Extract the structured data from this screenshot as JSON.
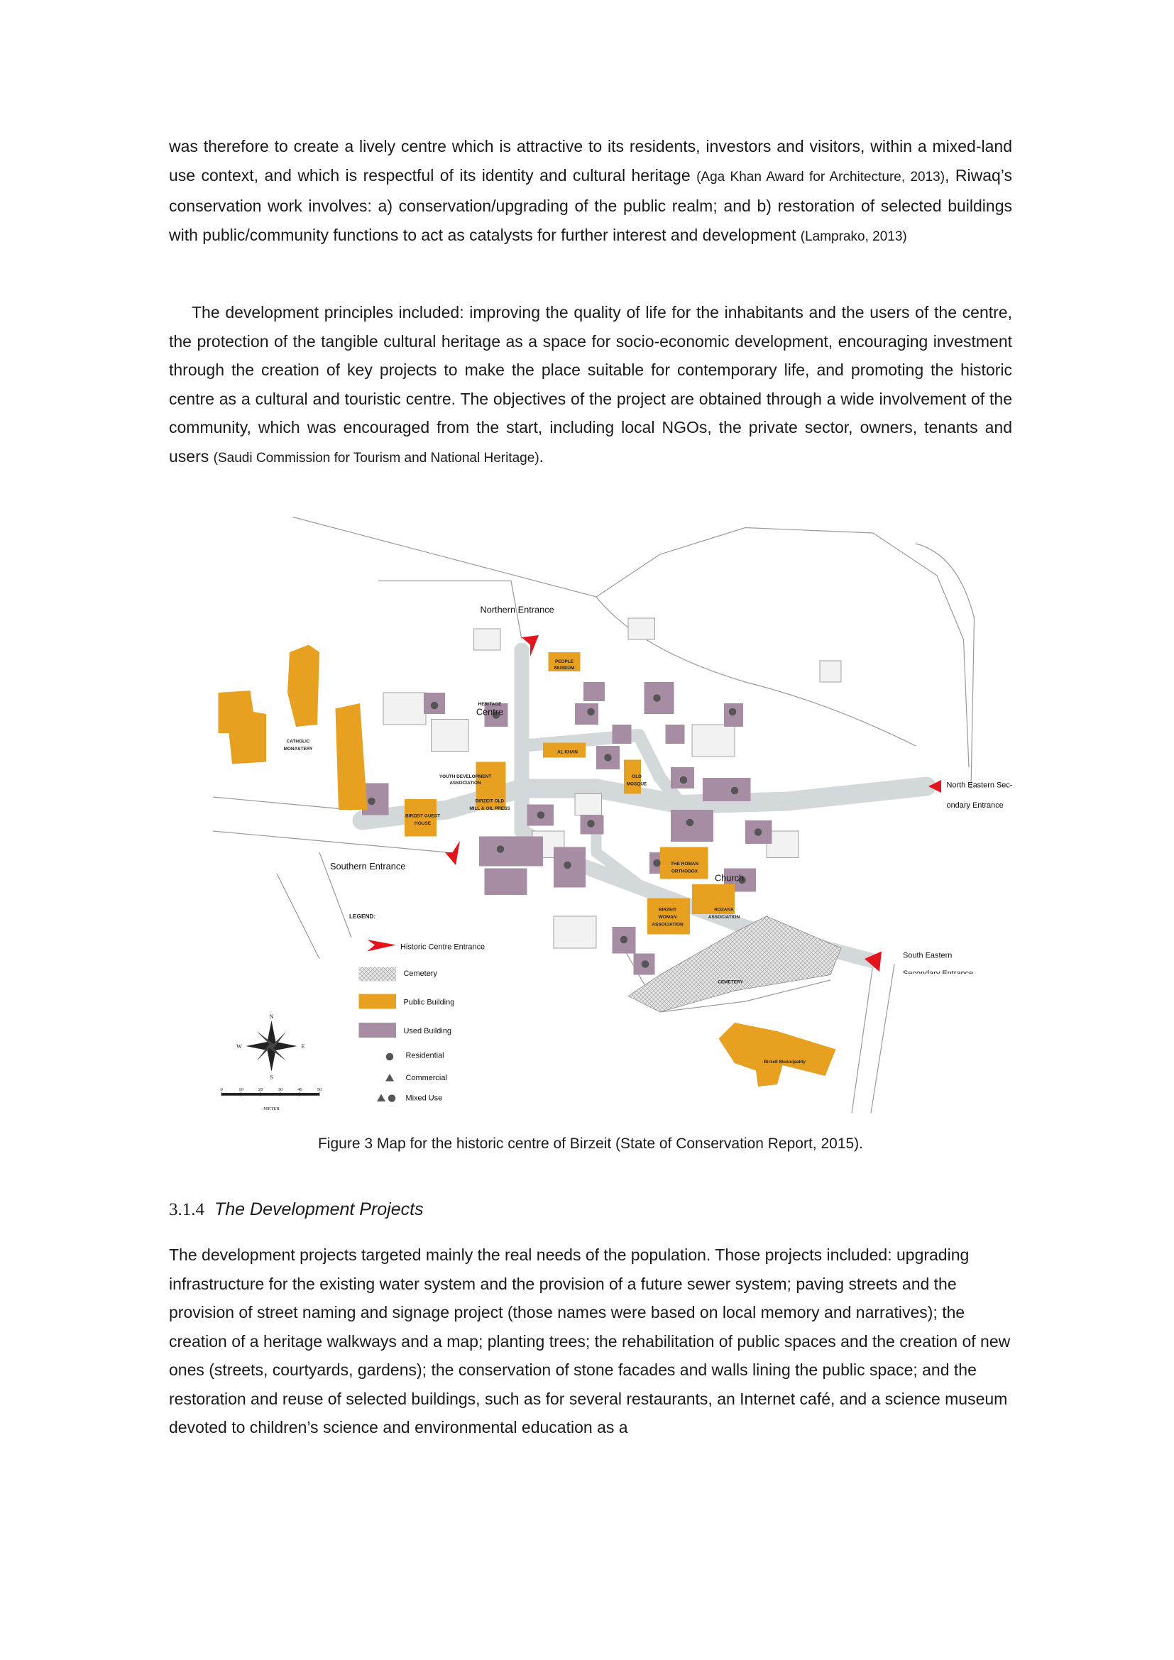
{
  "paragraph_1": {
    "parts": [
      "was therefore to create a lively centre which is attractive to its residents, investors and visitors, within a mixed-land use context, and which is respectful of its identity and cultural heritage ",
      "(Aga Khan Award for Architecture, 2013)",
      ", Riwaq’s conservation work involves: a) conservation/upgrading of the public realm; and b) restoration of selected buildings with public/community functions to act as catalysts for further interest and development ",
      "(Lamprako, 2013)"
    ]
  },
  "paragraph_2": {
    "parts": [
      "The development principles included: improving the quality of life for the inhabitants and the users of the centre, the protection of the tangible cultural heritage as a space for socio-economic development, encouraging investment through the creation of key projects to make the place suitable for contemporary life, and promoting the historic centre as a cultural and touristic centre. The objectives of the project are obtained through a wide involvement of the community, which was encouraged from the start, including local NGOs, the private sector, owners, tenants and users ",
      "(Saudi Commission for Tourism and National Heritage)",
      "."
    ]
  },
  "figure": {
    "labels": {
      "northern_entrance": "Northern Entrance",
      "people_museum": [
        "PEOPLE",
        "MUSEUM"
      ],
      "heritage": "HERITAGE",
      "centre": "Centre",
      "catholic_monastery": [
        "CATHOLIC",
        "MONASTERY"
      ],
      "al_khan": "AL KHAN",
      "old_mosque": [
        "OLD",
        "MOSQUE"
      ],
      "youth_development": [
        "YOUTH DEVELOPMENT",
        "ASSOCIATION"
      ],
      "mill": [
        "BIRZEIT OLD",
        "MILL & OIL PRESS"
      ],
      "guest_house": [
        "BIRZEIT GUEST",
        "HOUSE"
      ],
      "southern_entrance": "Southern Entrance",
      "roman_orthodox": [
        "THE ROMAN",
        "ORTHODOX"
      ],
      "church": "Church",
      "woman_association": [
        "BIRZEIT",
        "WOMAN",
        "ASSOCIATION"
      ],
      "rozana": [
        "ROZANA",
        "ASSOCIATION"
      ],
      "north_eastern": [
        "North Eastern Sec-",
        "ondary Entrance"
      ],
      "south_eastern": [
        "South Eastern",
        "Secondary Entrance"
      ],
      "cemetery": "CEMETERY",
      "municipality": "Birzeit Municipality"
    },
    "legend": {
      "title": "LEGEND:",
      "items": [
        "Historic Centre Entrance",
        "Cemetery",
        "Public Building",
        "Used Building",
        "Residential",
        "Commercial",
        "Mixed Use"
      ]
    },
    "compass": {
      "n": "N",
      "s": "S",
      "e": "E",
      "w": "W"
    },
    "scale": {
      "ticks": [
        "0",
        "10",
        "20",
        "30",
        "40",
        "50"
      ],
      "unit": "METER"
    },
    "caption": "Figure 3 Map for the historic centre of Birzeit (State of Conservation Report, 2015)."
  },
  "section": {
    "number": "3.1.4",
    "title": "The Development Projects"
  },
  "paragraph_3": "The development projects targeted mainly the real needs of the population. Those projects included: upgrading infrastructure for the existing water system and the provision of a future sewer system; paving streets and the provision of street naming and signage project (those names were based on local memory and narratives); the creation of a heritage walkways and a map; planting trees; the rehabilitation of public spaces and the creation of new ones (streets, courtyards, gardens); the conservation of stone facades and walls lining the public space; and the restoration and reuse of selected buildings, such as for several restaurants, an Internet café, and a science museum devoted to children’s science and environmental education as a"
}
